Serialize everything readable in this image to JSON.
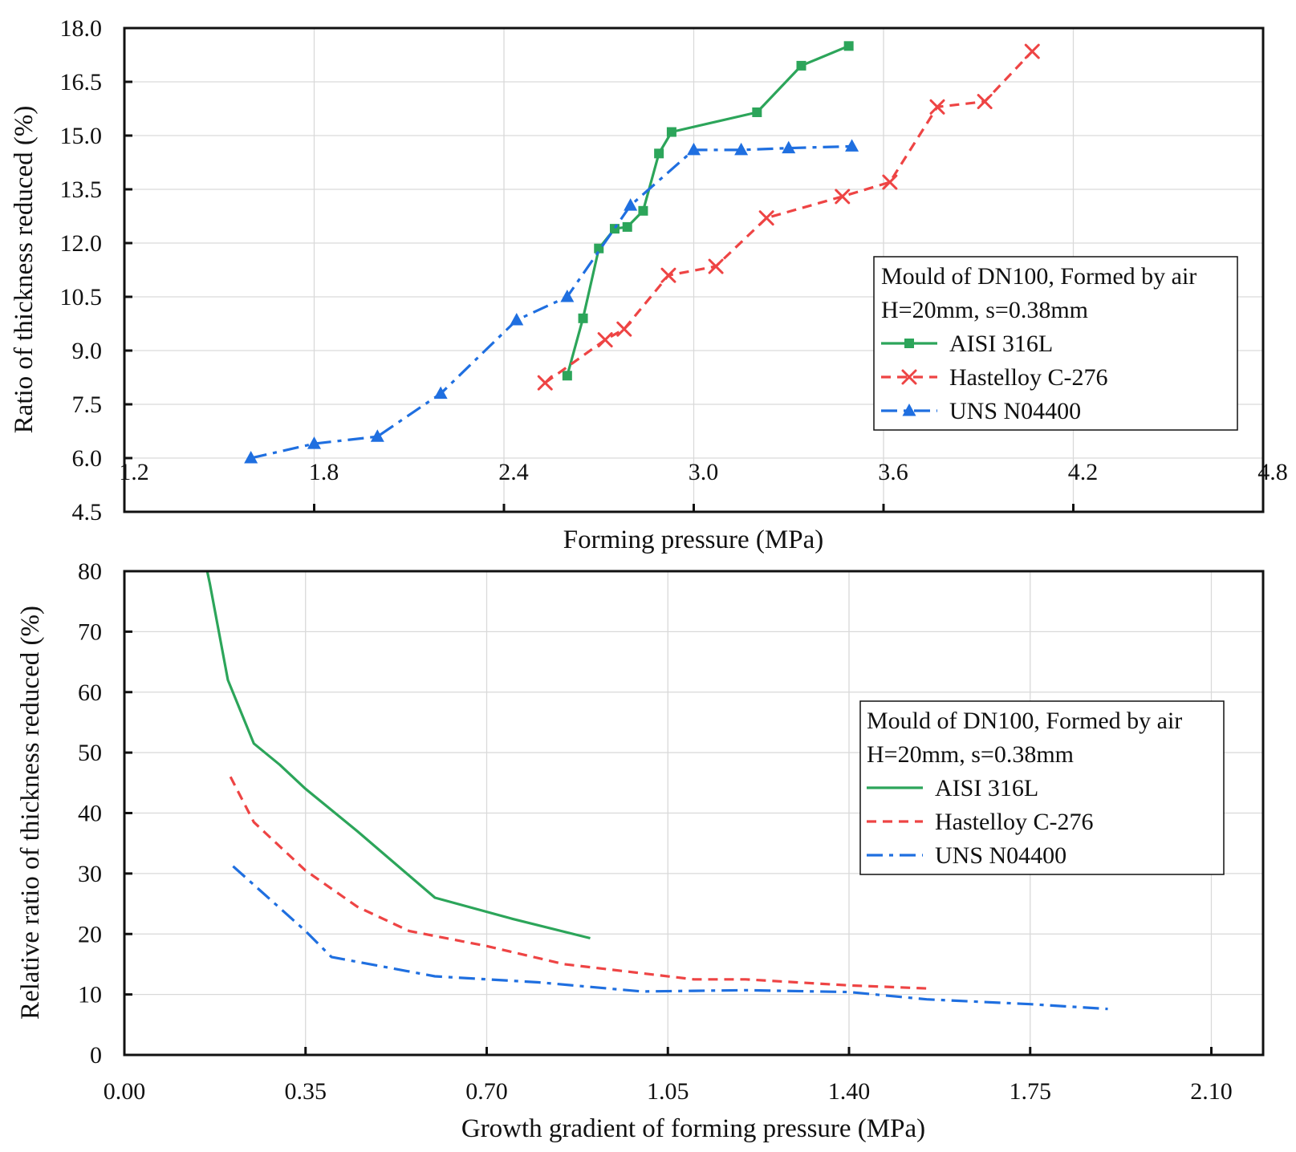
{
  "chart_data": [
    {
      "type": "line",
      "title": "",
      "xlabel": "Forming pressure (MPa)",
      "ylabel": "Ratio of thickness reduced (%)",
      "xlim": [
        1.2,
        4.8
      ],
      "ylim": [
        4.5,
        18.0
      ],
      "xticks": [
        1.2,
        1.8,
        2.4,
        3.0,
        3.6,
        4.2,
        4.8
      ],
      "yticks": [
        4.5,
        6.0,
        7.5,
        9.0,
        10.5,
        12.0,
        13.5,
        15.0,
        16.5,
        18.0
      ],
      "xtick_labels": [
        "1.2",
        "1.8",
        "2.4",
        "3.0",
        "3.6",
        "4.2",
        "4.8"
      ],
      "ytick_labels": [
        "4.5",
        "6.0",
        "7.5",
        "9.0",
        "10.5",
        "12.0",
        "13.5",
        "15.0",
        "16.5",
        "18.0"
      ],
      "grid": true,
      "legend": {
        "position": "middle-right",
        "header": [
          "Mould of DN100, Formed by air",
          "H=20mm, s=0.38mm"
        ]
      },
      "series": [
        {
          "name": "AISI 316L",
          "color": "#2ca55a",
          "linestyle": "solid",
          "marker": "square",
          "x": [
            2.6,
            2.65,
            2.7,
            2.75,
            2.79,
            2.84,
            2.89,
            2.93,
            3.2,
            3.34,
            3.49
          ],
          "y": [
            8.3,
            9.9,
            11.85,
            12.4,
            12.45,
            12.9,
            14.5,
            15.1,
            15.65,
            16.95,
            17.5
          ]
        },
        {
          "name": "Hastelloy C-276",
          "color": "#ee4444",
          "linestyle": "dashed",
          "marker": "x",
          "x": [
            2.53,
            2.72,
            2.78,
            2.92,
            3.07,
            3.23,
            3.47,
            3.62,
            3.77,
            3.92,
            4.07
          ],
          "y": [
            8.1,
            9.3,
            9.6,
            11.1,
            11.35,
            12.7,
            13.3,
            13.7,
            15.8,
            15.95,
            17.35
          ]
        },
        {
          "name": "UNS N04400",
          "color": "#1f6fe0",
          "linestyle": "dashdot",
          "marker": "triangle",
          "x": [
            1.6,
            1.8,
            2.0,
            2.2,
            2.44,
            2.6,
            2.8,
            3.0,
            3.15,
            3.3,
            3.5
          ],
          "y": [
            6.0,
            6.4,
            6.6,
            7.8,
            9.85,
            10.5,
            13.05,
            14.6,
            14.6,
            14.65,
            14.7
          ]
        }
      ]
    },
    {
      "type": "line",
      "title": "",
      "xlabel": "Growth gradient of forming pressure (MPa)",
      "ylabel": "Relative ratio of thickness reduced (%)",
      "xlim": [
        0.0,
        2.2
      ],
      "ylim": [
        0,
        80
      ],
      "xticks": [
        0.0,
        0.35,
        0.7,
        1.05,
        1.4,
        1.75,
        2.1
      ],
      "yticks": [
        0,
        10,
        20,
        30,
        40,
        50,
        60,
        70,
        80
      ],
      "xtick_labels": [
        "0.00",
        "0.35",
        "0.70",
        "1.05",
        "1.40",
        "1.75",
        "2.10"
      ],
      "ytick_labels": [
        "0",
        "10",
        "20",
        "30",
        "40",
        "50",
        "60",
        "70",
        "80"
      ],
      "grid": true,
      "legend": {
        "position": "middle-right",
        "header": [
          "Mould of DN100, Formed by air",
          "H=20mm, s=0.38mm"
        ]
      },
      "series": [
        {
          "name": "AISI 316L",
          "color": "#2ca55a",
          "linestyle": "solid",
          "x": [
            0.16,
            0.165,
            0.2,
            0.25,
            0.3,
            0.35,
            0.45,
            0.6,
            0.75,
            0.9
          ],
          "y": [
            80,
            78,
            62,
            51.5,
            48,
            44,
            37,
            26,
            22.5,
            19.3
          ]
        },
        {
          "name": "Hastelloy C-276",
          "color": "#ee4444",
          "linestyle": "dashed",
          "x": [
            0.205,
            0.25,
            0.35,
            0.45,
            0.55,
            0.7,
            0.85,
            1.0,
            1.1,
            1.2,
            1.4,
            1.55
          ],
          "y": [
            46,
            38.5,
            30.5,
            24.5,
            20.5,
            18,
            15,
            13.5,
            12.5,
            12.5,
            11.5,
            11
          ]
        },
        {
          "name": "UNS N04400",
          "color": "#1f6fe0",
          "linestyle": "dashdot",
          "x": [
            0.21,
            0.35,
            0.4,
            0.6,
            0.8,
            1.0,
            1.1,
            1.2,
            1.4,
            1.55,
            1.75,
            1.9
          ],
          "y": [
            31.2,
            20.5,
            16.2,
            13,
            12,
            10.5,
            10.6,
            10.7,
            10.4,
            9.2,
            8.4,
            7.6
          ]
        }
      ]
    }
  ]
}
